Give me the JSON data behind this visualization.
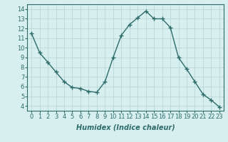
{
  "x": [
    0,
    1,
    2,
    3,
    4,
    5,
    6,
    7,
    8,
    9,
    10,
    11,
    12,
    13,
    14,
    15,
    16,
    17,
    18,
    19,
    20,
    21,
    22,
    23
  ],
  "y": [
    11.5,
    9.5,
    8.5,
    7.5,
    6.5,
    5.9,
    5.8,
    5.5,
    5.4,
    6.5,
    9.0,
    11.3,
    12.4,
    13.1,
    13.8,
    13.0,
    13.0,
    12.1,
    9.0,
    7.8,
    6.5,
    5.2,
    4.6,
    3.9
  ],
  "line_color": "#2e6b6b",
  "marker": "+",
  "marker_size": 4,
  "background_color": "#d7efef",
  "grid_color": "#b8d8d8",
  "xlabel": "Humidex (Indice chaleur)",
  "xlim": [
    -0.5,
    23.5
  ],
  "ylim": [
    3.5,
    14.5
  ],
  "xticks": [
    0,
    1,
    2,
    3,
    4,
    5,
    6,
    7,
    8,
    9,
    10,
    11,
    12,
    13,
    14,
    15,
    16,
    17,
    18,
    19,
    20,
    21,
    22,
    23
  ],
  "yticks": [
    4,
    5,
    6,
    7,
    8,
    9,
    10,
    11,
    12,
    13,
    14
  ],
  "tick_fontsize": 6,
  "xlabel_fontsize": 7
}
